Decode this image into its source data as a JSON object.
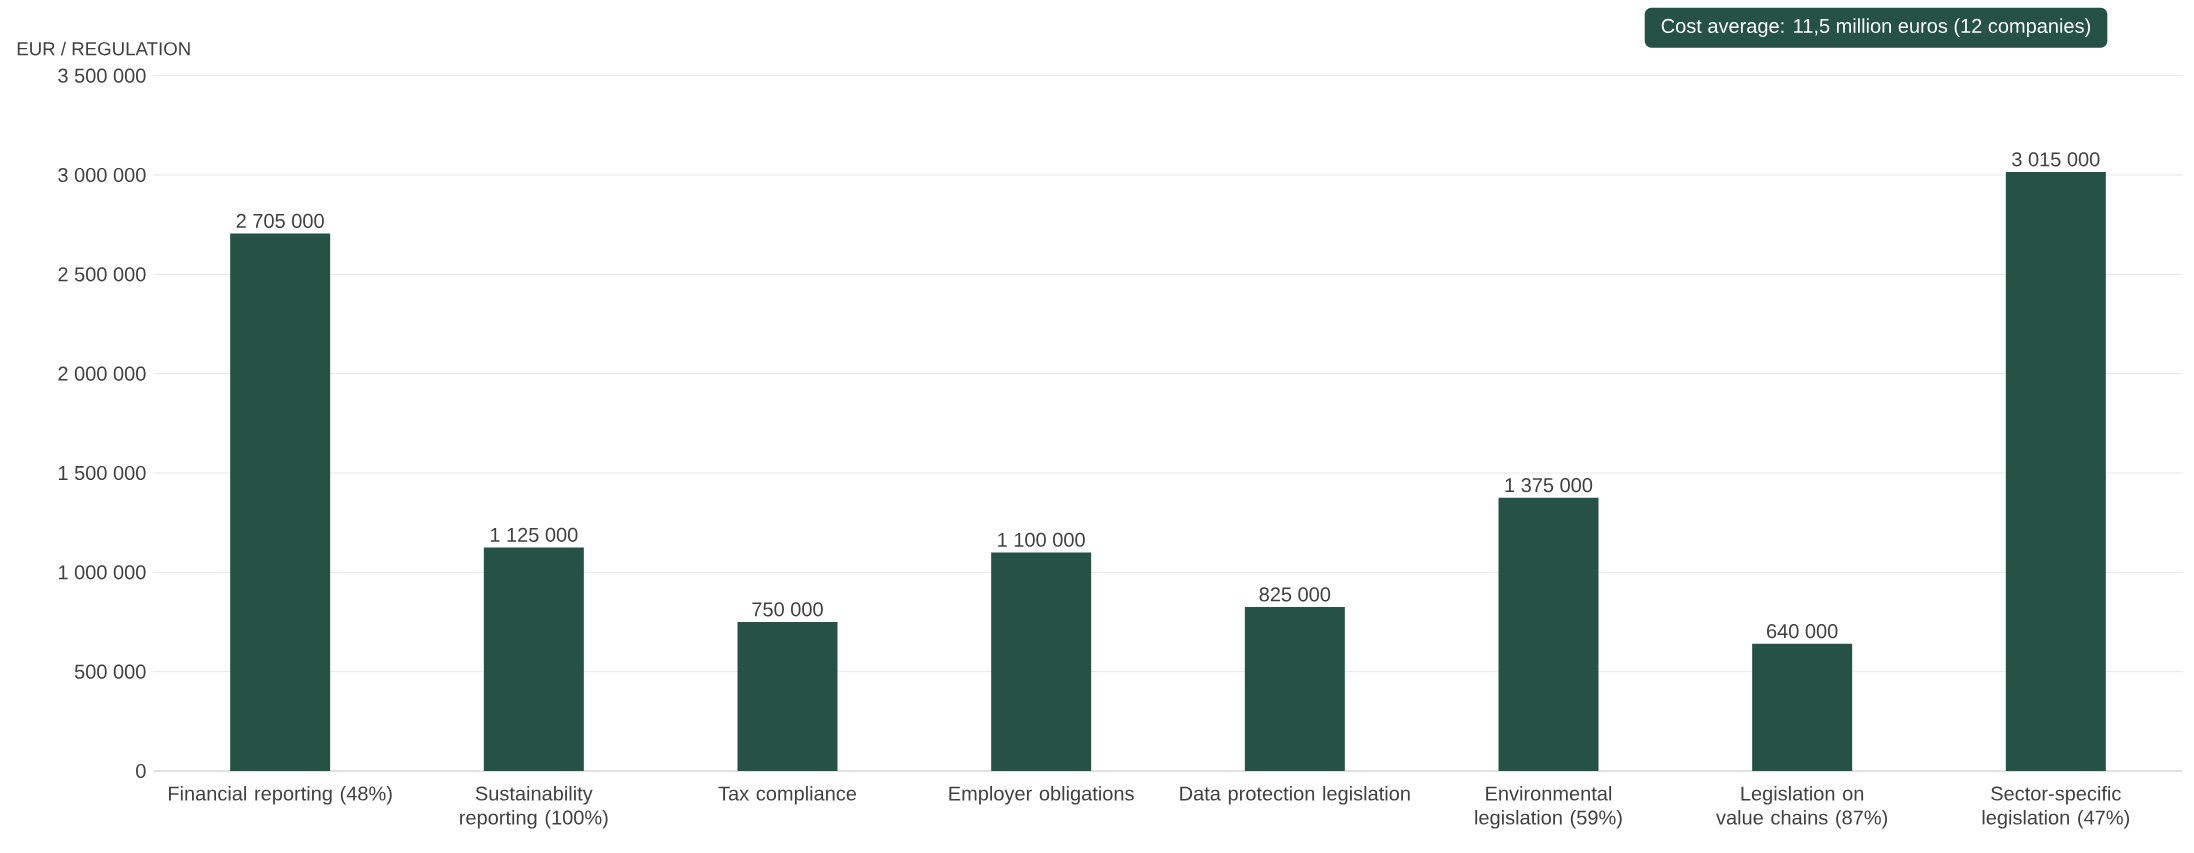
{
  "chart_data": {
    "type": "bar",
    "ylabel": "EUR / REGULATION",
    "categories": [
      "Financial reporting (48%)",
      "Sustainability reporting (100%)",
      "Tax compliance",
      "Employer obligations",
      "Data protection legislation",
      "Environmental legislation (59%)",
      "Legislation on value chains (87%)",
      "Sector-specific legislation (47%)"
    ],
    "values": [
      2705000,
      1125000,
      750000,
      1100000,
      825000,
      1375000,
      640000,
      3015000
    ],
    "value_labels": [
      "2 705 000",
      "1 125 000",
      "750 000",
      "1 100 000",
      "825 000",
      "1 375 000",
      "640 000",
      "3 015 000"
    ],
    "color": "#265246",
    "ylim": [
      0,
      3500000
    ],
    "yticks": [
      {
        "value": 0,
        "label": "0"
      },
      {
        "value": 500000,
        "label": "500 000"
      },
      {
        "value": 1000000,
        "label": "1 000 000"
      },
      {
        "value": 1500000,
        "label": "1 500 000"
      },
      {
        "value": 2000000,
        "label": "2 000 000"
      },
      {
        "value": 2500000,
        "label": "2 500 000"
      },
      {
        "value": 3000000,
        "label": "3 000 000"
      },
      {
        "value": 3500000,
        "label": "3 500 000"
      }
    ],
    "grid": "y",
    "annotations": [
      "Cost average: 11,5 million euros (12 companies)"
    ]
  }
}
